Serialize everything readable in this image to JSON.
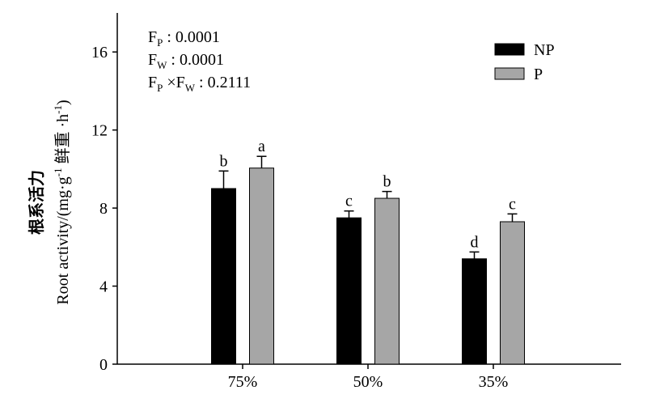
{
  "chart_data": {
    "type": "bar",
    "categories": [
      "75%",
      "50%",
      "35%"
    ],
    "series": [
      {
        "name": "NP",
        "color": "#000000",
        "values": [
          9.0,
          7.5,
          5.4
        ],
        "errors": [
          0.9,
          0.35,
          0.35
        ],
        "letters": [
          "b",
          "c",
          "d"
        ]
      },
      {
        "name": "P",
        "color": "#a6a6a6",
        "values": [
          10.05,
          8.5,
          7.3
        ],
        "errors": [
          0.6,
          0.35,
          0.4
        ],
        "letters": [
          "a",
          "b",
          "c"
        ]
      }
    ],
    "ylim": [
      0,
      18
    ],
    "yticks": [
      "0",
      "4",
      "8",
      "12",
      "16"
    ],
    "ylabel_cn": "根系活力",
    "ylabel_en_prefix": "Root activity/(mg·g",
    "ylabel_en_sup1": "-1",
    "ylabel_en_mid": " 鲜重 ·h",
    "ylabel_en_sup2": "-1",
    "ylabel_en_suffix": ")",
    "legend_placement": "top-right",
    "stats": [
      {
        "label": "F",
        "sub": "P",
        "value": " : 0.0001"
      },
      {
        "label": "F",
        "sub": "W",
        "value": " : 0.0001"
      }
    ],
    "interaction": {
      "f1": "F",
      "sub1": "P",
      "times": " ×",
      "f2": "F",
      "sub2": "W",
      "value": " : 0.2111"
    }
  }
}
